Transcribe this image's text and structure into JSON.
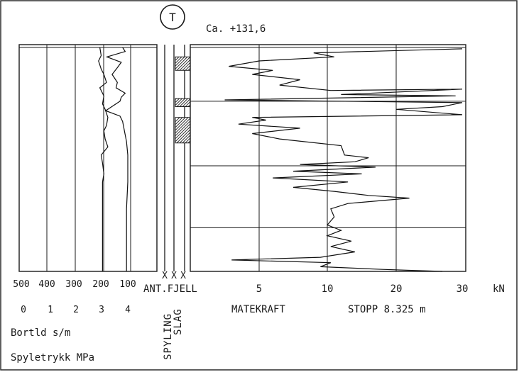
{
  "header": {
    "symbol": "T",
    "elevation": "Ca. +131,6"
  },
  "chart_data": {
    "type": "line",
    "left_panel": {
      "time_ticks": [
        "500",
        "400",
        "300",
        "200",
        "100"
      ],
      "pressure_ticks": [
        "0",
        "1",
        "2",
        "3",
        "4"
      ],
      "time_label": "Bortld s/m",
      "pressure_label": "Spyletrykk MPa",
      "series": [
        {
          "name": "Bortld",
          "points": [
            [
              205,
              0.0
            ],
            [
              200,
              0.3
            ],
            [
              210,
              0.5
            ],
            [
              200,
              0.8
            ],
            [
              190,
              1.0
            ],
            [
              180,
              1.3
            ],
            [
              205,
              1.5
            ],
            [
              190,
              1.8
            ],
            [
              195,
              2.1
            ],
            [
              185,
              2.3
            ],
            [
              175,
              2.6
            ],
            [
              180,
              2.9
            ],
            [
              190,
              3.1
            ],
            [
              185,
              3.4
            ],
            [
              175,
              3.7
            ],
            [
              200,
              4.0
            ],
            [
              195,
              4.3
            ],
            [
              190,
              4.7
            ],
            [
              195,
              5.0
            ],
            [
              195,
              5.5
            ],
            [
              195,
              6.0
            ],
            [
              195,
              6.5
            ],
            [
              195,
              7.0
            ],
            [
              195,
              7.5
            ],
            [
              195,
              8.0
            ],
            [
              195,
              8.325
            ]
          ]
        },
        {
          "name": "Spyletrykk",
          "points": [
            [
              3.8,
              0.0
            ],
            [
              3.9,
              0.15
            ],
            [
              3.2,
              0.35
            ],
            [
              3.75,
              0.55
            ],
            [
              3.6,
              0.75
            ],
            [
              3.4,
              1.0
            ],
            [
              3.6,
              1.3
            ],
            [
              3.55,
              1.5
            ],
            [
              3.9,
              1.7
            ],
            [
              3.75,
              1.85
            ],
            [
              3.7,
              2.0
            ],
            [
              3.15,
              2.35
            ],
            [
              3.7,
              2.55
            ],
            [
              3.8,
              2.75
            ],
            [
              3.85,
              3.0
            ],
            [
              3.95,
              3.5
            ],
            [
              4.0,
              4.0
            ],
            [
              4.0,
              5.0
            ],
            [
              3.95,
              6.0
            ],
            [
              3.95,
              7.0
            ],
            [
              3.95,
              8.0
            ],
            [
              3.95,
              8.325
            ]
          ]
        }
      ]
    },
    "middle_panel": {
      "markers": [
        "X",
        "X",
        "X"
      ],
      "column_labels": [
        "SPYLING",
        "SLAG"
      ],
      "top_label": "ANT.FJELL",
      "hatched_intervals": [
        [
          0.35,
          0.85
        ],
        [
          1.9,
          2.2
        ],
        [
          2.6,
          3.55
        ]
      ]
    },
    "right_panel": {
      "x_ticks": [
        "5",
        "10",
        "20",
        "30"
      ],
      "unit": "kN",
      "xlabel": "MATEKRAFT",
      "stop_text": "STOPP 8.325 m",
      "depth_gridlines": [
        0,
        2.0,
        4.4,
        6.7,
        8.325
      ],
      "series": [
        {
          "name": "MATEKRAFT",
          "points": [
            [
              30,
              0.05
            ],
            [
              9,
              0.2
            ],
            [
              11,
              0.35
            ],
            [
              5,
              0.5
            ],
            [
              2.8,
              0.7
            ],
            [
              6,
              0.85
            ],
            [
              4.5,
              1.0
            ],
            [
              8,
              1.2
            ],
            [
              6.5,
              1.4
            ],
            [
              10.5,
              1.6
            ],
            [
              30,
              1.55
            ],
            [
              12,
              1.75
            ],
            [
              29,
              1.8
            ],
            [
              2.5,
              1.95
            ],
            [
              30,
              2.05
            ],
            [
              27,
              2.2
            ],
            [
              20,
              2.3
            ],
            [
              30,
              2.5
            ],
            [
              4.5,
              2.6
            ],
            [
              5.5,
              2.7
            ],
            [
              3.5,
              2.85
            ],
            [
              8,
              3.0
            ],
            [
              4.5,
              3.2
            ],
            [
              6.5,
              3.4
            ],
            [
              12,
              3.65
            ],
            [
              12.5,
              4.0
            ],
            [
              16,
              4.1
            ],
            [
              14,
              4.25
            ],
            [
              8,
              4.35
            ],
            [
              17,
              4.45
            ],
            [
              7.5,
              4.6
            ],
            [
              15,
              4.7
            ],
            [
              6,
              4.85
            ],
            [
              13,
              5.0
            ],
            [
              7.5,
              5.2
            ],
            [
              11,
              5.35
            ],
            [
              16,
              5.5
            ],
            [
              22,
              5.6
            ],
            [
              13,
              5.8
            ],
            [
              10.5,
              6.0
            ],
            [
              11,
              6.3
            ],
            [
              10,
              6.6
            ],
            [
              12,
              6.8
            ],
            [
              10,
              7.0
            ],
            [
              13.5,
              7.2
            ],
            [
              10.5,
              7.4
            ],
            [
              14,
              7.6
            ],
            [
              9.5,
              7.8
            ],
            [
              3,
              7.9
            ],
            [
              10.5,
              8.0
            ],
            [
              9.5,
              8.15
            ],
            [
              18,
              8.25
            ],
            [
              27,
              8.325
            ]
          ]
        }
      ]
    }
  }
}
